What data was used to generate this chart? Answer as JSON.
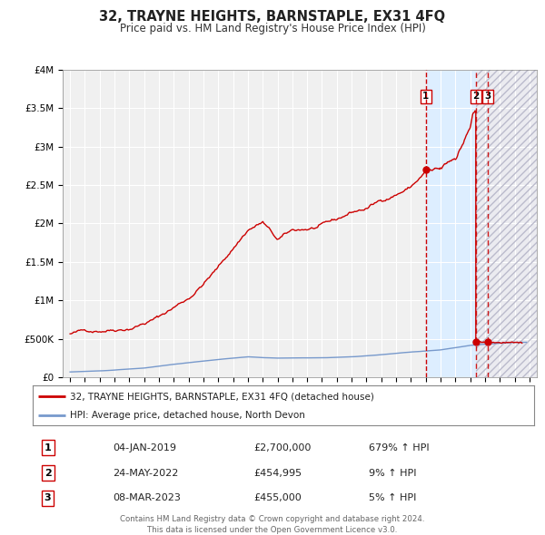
{
  "title": "32, TRAYNE HEIGHTS, BARNSTAPLE, EX31 4FQ",
  "subtitle": "Price paid vs. HM Land Registry's House Price Index (HPI)",
  "hpi_label": "HPI: Average price, detached house, North Devon",
  "property_label": "32, TRAYNE HEIGHTS, BARNSTAPLE, EX31 4FQ (detached house)",
  "hpi_color": "#7799cc",
  "property_color": "#cc0000",
  "marker_color": "#cc0000",
  "xlim": [
    1994.5,
    2026.5
  ],
  "ylim": [
    0,
    4000000
  ],
  "yticks": [
    0,
    500000,
    1000000,
    1500000,
    2000000,
    2500000,
    3000000,
    3500000,
    4000000
  ],
  "ytick_labels": [
    "£0",
    "£500K",
    "£1M",
    "£1.5M",
    "£2M",
    "£2.5M",
    "£3M",
    "£3.5M",
    "£4M"
  ],
  "t1_year": 2019.01,
  "t1_price": 2700000,
  "t2_year": 2022.38,
  "t2_price": 454995,
  "t3_year": 2023.18,
  "t3_price": 455000,
  "transactions": [
    {
      "id": 1,
      "date_label": "04-JAN-2019",
      "price": 2700000,
      "price_str": "£2,700,000",
      "pct": "679%",
      "direction": "↑",
      "year": 2019.01
    },
    {
      "id": 2,
      "date_label": "24-MAY-2022",
      "price": 454995,
      "price_str": "£454,995",
      "pct": "9%",
      "direction": "↑",
      "year": 2022.38
    },
    {
      "id": 3,
      "date_label": "08-MAR-2023",
      "price": 455000,
      "price_str": "£455,000",
      "pct": "5%",
      "direction": "↑",
      "year": 2023.18
    }
  ],
  "footer": "Contains HM Land Registry data © Crown copyright and database right 2024.\nThis data is licensed under the Open Government Licence v3.0.",
  "bg_color": "#ffffff",
  "plot_bg_color": "#f0f0f0",
  "grid_color": "#ffffff",
  "legend_box_color": "#ffffff",
  "shade1_color": "#ddeeff",
  "shade2_color": "#e8e8e8"
}
